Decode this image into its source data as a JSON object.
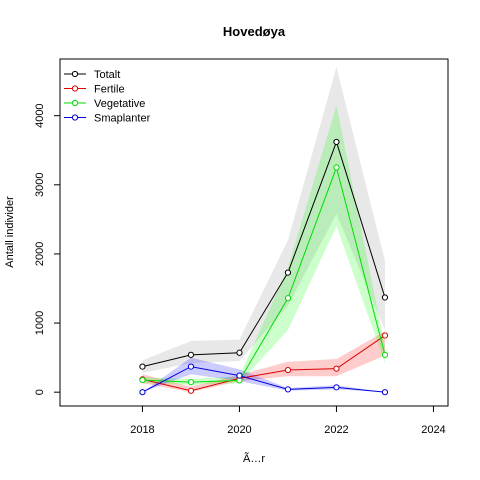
{
  "chart_data": {
    "type": "line",
    "title": "Hovedøya",
    "xlabel": "Ã…r",
    "ylabel": "Antall individer",
    "xlim": [
      2016.3,
      2024.3
    ],
    "ylim": [
      -200,
      4820
    ],
    "x_ticks": [
      2018,
      2020,
      2022,
      2024
    ],
    "x_tick_labels": [
      "2018",
      "2020",
      "2022",
      "2024"
    ],
    "y_ticks": [
      0,
      1000,
      2000,
      3000,
      4000
    ],
    "y_tick_labels": [
      "0",
      "1000",
      "2000",
      "3000",
      "4000"
    ],
    "grid": false,
    "legend_position": "top-left",
    "x": [
      2018,
      2019,
      2020,
      2021,
      2022,
      2023
    ],
    "series": [
      {
        "name": "Totalt",
        "color": "#000000",
        "band_color": "#bebebe",
        "values": [
          370,
          540,
          570,
          1730,
          3620,
          1370
        ],
        "lower": [
          280,
          420,
          450,
          1250,
          2580,
          900
        ],
        "upper": [
          460,
          740,
          760,
          2200,
          4700,
          1900
        ]
      },
      {
        "name": "Fertile",
        "color": "#dd0000",
        "band_color": "#ff0000",
        "values": [
          185,
          20,
          200,
          320,
          340,
          820
        ],
        "lower": [
          130,
          0,
          160,
          230,
          230,
          530
        ],
        "upper": [
          260,
          80,
          250,
          440,
          480,
          880
        ]
      },
      {
        "name": "Vegetative",
        "color": "#00dd00",
        "band_color": "#00ff00",
        "values": [
          175,
          145,
          170,
          1360,
          3250,
          540
        ],
        "lower": [
          130,
          110,
          130,
          900,
          2400,
          420
        ],
        "upper": [
          220,
          190,
          230,
          1800,
          4150,
          660
        ]
      },
      {
        "name": "Smaplanter",
        "color": "#0000dd",
        "band_color": "#0000ff",
        "values": [
          0,
          370,
          240,
          40,
          70,
          0
        ],
        "lower": [
          0,
          260,
          160,
          20,
          40,
          0
        ],
        "upper": [
          0,
          500,
          330,
          60,
          100,
          0
        ]
      }
    ]
  }
}
